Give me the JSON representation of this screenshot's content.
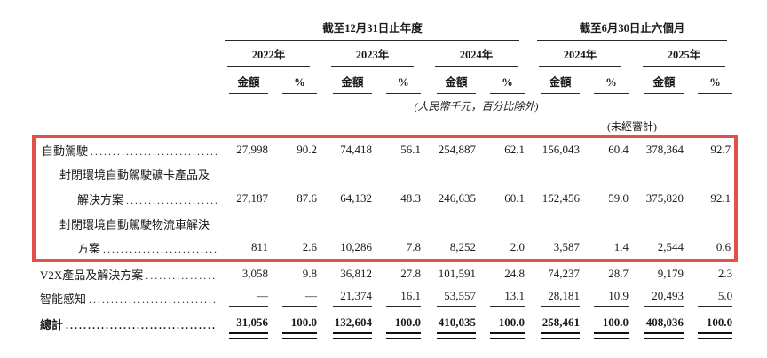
{
  "document": {
    "background": "#ffffff",
    "text_color": "#1a1a1a",
    "rule_color": "#2a2a2a",
    "highlight_border_color": "#e4504a"
  },
  "table": {
    "period_groups": [
      {
        "label": "截至12月31日止年度",
        "years": [
          "2022年",
          "2023年",
          "2024年"
        ]
      },
      {
        "label": "截至6月30日止六個月",
        "years": [
          "2024年",
          "2025年"
        ]
      }
    ],
    "amount_header": "金額",
    "percent_header": "%",
    "unit_note": "(人民幣千元，百分比除外)",
    "unaudited_note": "(未經審計)",
    "dot_leader": "................................................................................................",
    "rows": [
      {
        "label": "自動駕駛",
        "indent": 0,
        "leader": true,
        "highlight": true,
        "values": [
          "27,998",
          "90.2",
          "74,418",
          "56.1",
          "254,887",
          "62.1",
          "156,043",
          "60.4",
          "378,364",
          "92.7"
        ]
      },
      {
        "label": "封閉環境自動駕駛礦卡產品及",
        "indent": 1,
        "leader": false,
        "highlight": true,
        "values": [
          "",
          "",
          "",
          "",
          "",
          "",
          "",
          "",
          "",
          ""
        ]
      },
      {
        "label": "解決方案",
        "indent": 2,
        "leader": true,
        "highlight": true,
        "values": [
          "27,187",
          "87.6",
          "64,132",
          "48.3",
          "246,635",
          "60.1",
          "152,456",
          "59.0",
          "375,820",
          "92.1"
        ]
      },
      {
        "label": "封閉環境自動駕駛物流車解決",
        "indent": 1,
        "leader": false,
        "highlight": true,
        "values": [
          "",
          "",
          "",
          "",
          "",
          "",
          "",
          "",
          "",
          ""
        ]
      },
      {
        "label": "方案",
        "indent": 2,
        "leader": true,
        "highlight": true,
        "values": [
          "811",
          "2.6",
          "10,286",
          "7.8",
          "8,252",
          "2.0",
          "3,587",
          "1.4",
          "2,544",
          "0.6"
        ]
      },
      {
        "label": "V2X產品及解決方案",
        "indent": 0,
        "leader": true,
        "highlight": false,
        "values": [
          "3,058",
          "9.8",
          "36,812",
          "27.8",
          "101,591",
          "24.8",
          "74,237",
          "28.7",
          "9,179",
          "2.3"
        ]
      },
      {
        "label": "智能感知",
        "indent": 0,
        "leader": true,
        "highlight": false,
        "rule": "single",
        "values": [
          "—",
          "—",
          "21,374",
          "16.1",
          "53,557",
          "13.1",
          "28,181",
          "10.9",
          "20,493",
          "5.0"
        ]
      },
      {
        "label": "總計",
        "indent": 0,
        "leader": true,
        "highlight": false,
        "rule": "double",
        "bold": true,
        "values": [
          "31,056",
          "100.0",
          "132,604",
          "100.0",
          "410,035",
          "100.0",
          "258,461",
          "100.0",
          "408,036",
          "100.0"
        ]
      }
    ]
  }
}
